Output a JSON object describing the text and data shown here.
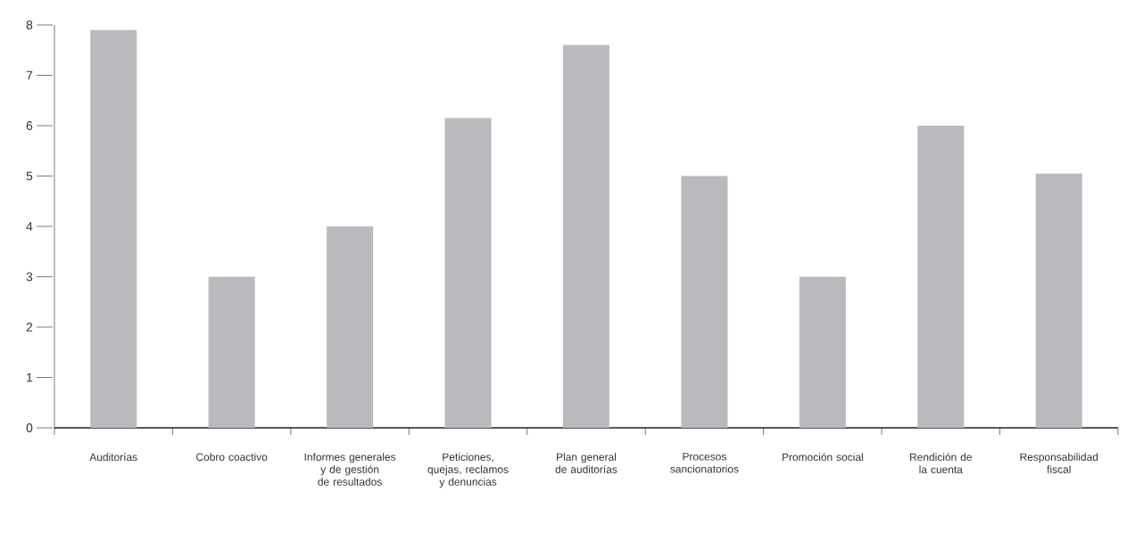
{
  "chart_data": {
    "type": "bar",
    "categories": [
      "Auditorías",
      "Cobro coactivo",
      "Informes generales y de gestión de resultados",
      "Peticiones, quejas, reclamos y denuncias",
      "Plan general de auditorías",
      "Procesos sancionatorios",
      "Promoción social",
      "Rendición de la cuenta",
      "Responsabilidad fiscal"
    ],
    "values": [
      7.9,
      3,
      4,
      6.15,
      7.6,
      5,
      3,
      6,
      5.05
    ],
    "color": "#b9babe",
    "ylim": [
      0,
      8
    ],
    "yticks": [
      0,
      1,
      2,
      3,
      4,
      5,
      6,
      7,
      8
    ]
  }
}
